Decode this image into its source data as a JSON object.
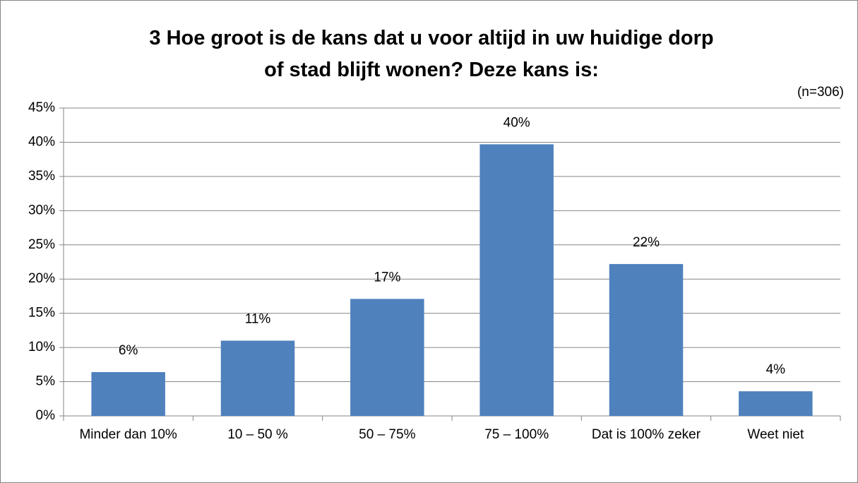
{
  "chart_data": {
    "type": "bar",
    "title": "3 Hoe groot is de kans dat u voor altijd in uw huidige dorp of stad blijft wonen? Deze kans is:",
    "annotation": "(n=306)",
    "categories": [
      "Minder dan 10%",
      "10 – 50 %",
      "50 – 75%",
      "75 – 100%",
      "Dat is 100% zeker",
      "Weet niet"
    ],
    "values": [
      6.4,
      11,
      17.1,
      39.7,
      22.2,
      3.6
    ],
    "value_labels": [
      "6%",
      "11%",
      "17%",
      "40%",
      "22%",
      "4%"
    ],
    "color": "#4f81bd",
    "ylim": [
      0,
      45
    ],
    "yticks": [
      {
        "value": 0,
        "label": "0%"
      },
      {
        "value": 5,
        "label": "5%"
      },
      {
        "value": 10,
        "label": "10%"
      },
      {
        "value": 15,
        "label": "15%"
      },
      {
        "value": 20,
        "label": "20%"
      },
      {
        "value": 25,
        "label": "25%"
      },
      {
        "value": 30,
        "label": "30%"
      },
      {
        "value": 35,
        "label": "35%"
      },
      {
        "value": 40,
        "label": "40%"
      },
      {
        "value": 45,
        "label": "45%"
      }
    ],
    "grid": true
  }
}
